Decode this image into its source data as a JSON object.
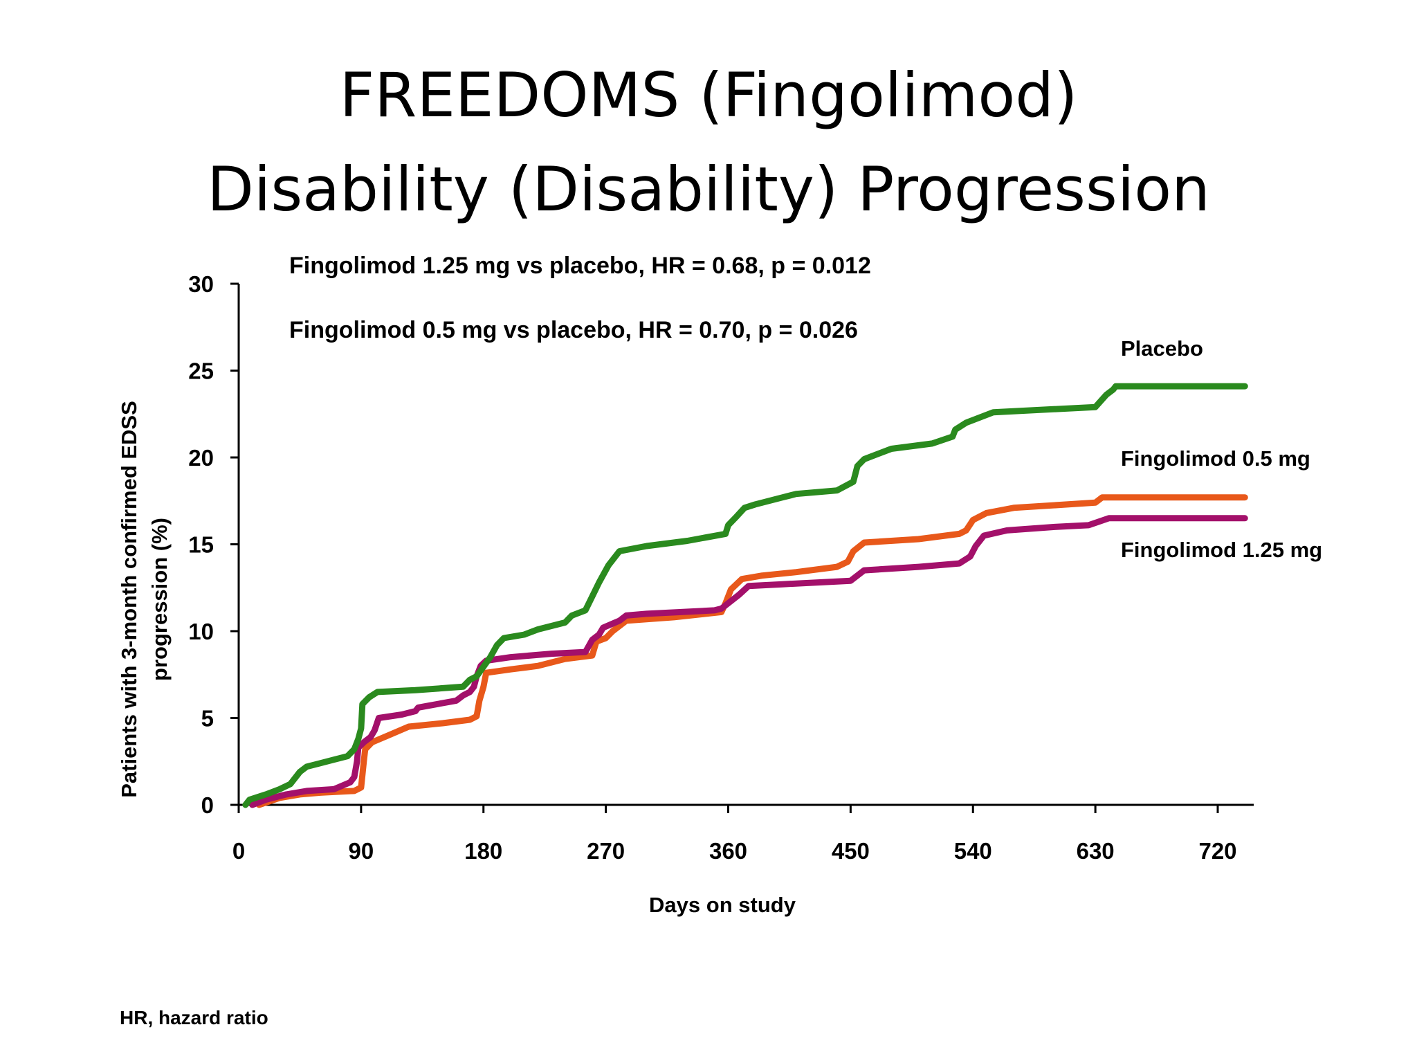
{
  "title": {
    "line1": "FREEDOMS (Fingolimod)",
    "line2": "Disability (Disability) Progression"
  },
  "footnote": "HR, hazard ratio",
  "colors": {
    "placebo": "#2a8a1e",
    "fingolimod_05": "#e8581a",
    "fingolimod_125": "#a3106a",
    "axis": "#000000"
  },
  "chart_data": {
    "type": "line",
    "title": "",
    "xlabel": "Days on study",
    "ylabel": "Patients with 3-month confirmed EDSS progression (%)",
    "ylabel_line1": "Patients with 3-month confirmed EDSS",
    "ylabel_line2": "progression (%)",
    "xlim": [
      0,
      740
    ],
    "ylim": [
      0,
      30
    ],
    "xticks": [
      "0",
      "90",
      "180",
      "270",
      "360",
      "450",
      "540",
      "630",
      "720"
    ],
    "xtick_values": [
      0,
      90,
      180,
      270,
      360,
      450,
      540,
      630,
      720
    ],
    "yticks": [
      "0",
      "5",
      "10",
      "15",
      "20",
      "25",
      "30"
    ],
    "ytick_values": [
      0,
      5,
      10,
      15,
      20,
      25,
      30
    ],
    "grid": false,
    "annotations": [
      "Fingolimod 1.25 mg vs placebo, HR = 0.68, p = 0.012",
      "Fingolimod 0.5 mg vs placebo, HR = 0.70, p = 0.026"
    ],
    "series": [
      {
        "name": "Placebo",
        "color_key": "placebo",
        "points": [
          [
            5,
            0
          ],
          [
            8,
            0.3
          ],
          [
            20,
            0.6
          ],
          [
            30,
            0.9
          ],
          [
            38,
            1.2
          ],
          [
            45,
            1.9
          ],
          [
            50,
            2.2
          ],
          [
            60,
            2.4
          ],
          [
            70,
            2.6
          ],
          [
            80,
            2.8
          ],
          [
            85,
            3.2
          ],
          [
            88,
            3.8
          ],
          [
            90,
            4.4
          ],
          [
            91,
            5.8
          ],
          [
            96,
            6.2
          ],
          [
            102,
            6.5
          ],
          [
            130,
            6.6
          ],
          [
            165,
            6.8
          ],
          [
            170,
            7.2
          ],
          [
            175,
            7.4
          ],
          [
            185,
            8.5
          ],
          [
            190,
            9.2
          ],
          [
            195,
            9.6
          ],
          [
            210,
            9.8
          ],
          [
            220,
            10.1
          ],
          [
            240,
            10.5
          ],
          [
            245,
            10.9
          ],
          [
            255,
            11.2
          ],
          [
            260,
            12.0
          ],
          [
            265,
            12.8
          ],
          [
            272,
            13.8
          ],
          [
            280,
            14.6
          ],
          [
            300,
            14.9
          ],
          [
            330,
            15.2
          ],
          [
            358,
            15.6
          ],
          [
            360,
            16.1
          ],
          [
            365,
            16.5
          ],
          [
            372,
            17.1
          ],
          [
            380,
            17.3
          ],
          [
            400,
            17.7
          ],
          [
            410,
            17.9
          ],
          [
            440,
            18.1
          ],
          [
            452,
            18.6
          ],
          [
            455,
            19.5
          ],
          [
            460,
            19.9
          ],
          [
            480,
            20.5
          ],
          [
            510,
            20.8
          ],
          [
            525,
            21.2
          ],
          [
            527,
            21.6
          ],
          [
            535,
            22.0
          ],
          [
            555,
            22.6
          ],
          [
            630,
            22.9
          ],
          [
            638,
            23.6
          ],
          [
            643,
            23.9
          ],
          [
            645,
            24.1
          ],
          [
            740,
            24.1
          ]
        ]
      },
      {
        "name": "Fingolimod 0.5 mg",
        "color_key": "fingolimod_05",
        "points": [
          [
            15,
            0
          ],
          [
            30,
            0.4
          ],
          [
            45,
            0.6
          ],
          [
            60,
            0.7
          ],
          [
            85,
            0.8
          ],
          [
            90,
            1.0
          ],
          [
            92,
            2.5
          ],
          [
            93,
            3.2
          ],
          [
            98,
            3.6
          ],
          [
            110,
            4.0
          ],
          [
            125,
            4.5
          ],
          [
            150,
            4.7
          ],
          [
            170,
            4.9
          ],
          [
            175,
            5.1
          ],
          [
            177,
            6.0
          ],
          [
            180,
            6.8
          ],
          [
            182,
            7.6
          ],
          [
            200,
            7.8
          ],
          [
            220,
            8.0
          ],
          [
            240,
            8.4
          ],
          [
            260,
            8.6
          ],
          [
            263,
            9.4
          ],
          [
            270,
            9.6
          ],
          [
            275,
            10.0
          ],
          [
            285,
            10.6
          ],
          [
            320,
            10.8
          ],
          [
            355,
            11.1
          ],
          [
            358,
            11.6
          ],
          [
            362,
            12.4
          ],
          [
            370,
            13.0
          ],
          [
            385,
            13.2
          ],
          [
            410,
            13.4
          ],
          [
            440,
            13.7
          ],
          [
            448,
            14.0
          ],
          [
            452,
            14.6
          ],
          [
            460,
            15.1
          ],
          [
            500,
            15.3
          ],
          [
            530,
            15.6
          ],
          [
            535,
            15.8
          ],
          [
            540,
            16.4
          ],
          [
            550,
            16.8
          ],
          [
            570,
            17.1
          ],
          [
            630,
            17.4
          ],
          [
            635,
            17.7
          ],
          [
            740,
            17.7
          ]
        ]
      },
      {
        "name": "Fingolimod 1.25 mg",
        "color_key": "fingolimod_125",
        "points": [
          [
            10,
            0
          ],
          [
            20,
            0.3
          ],
          [
            35,
            0.6
          ],
          [
            50,
            0.8
          ],
          [
            70,
            0.9
          ],
          [
            82,
            1.3
          ],
          [
            85,
            1.6
          ],
          [
            87,
            2.5
          ],
          [
            88,
            3.3
          ],
          [
            92,
            3.6
          ],
          [
            97,
            3.9
          ],
          [
            100,
            4.3
          ],
          [
            103,
            5.0
          ],
          [
            120,
            5.2
          ],
          [
            130,
            5.4
          ],
          [
            132,
            5.6
          ],
          [
            160,
            6.0
          ],
          [
            165,
            6.3
          ],
          [
            170,
            6.5
          ],
          [
            173,
            6.8
          ],
          [
            175,
            7.4
          ],
          [
            178,
            8.0
          ],
          [
            182,
            8.3
          ],
          [
            200,
            8.5
          ],
          [
            230,
            8.7
          ],
          [
            255,
            8.8
          ],
          [
            260,
            9.5
          ],
          [
            265,
            9.8
          ],
          [
            268,
            10.2
          ],
          [
            280,
            10.6
          ],
          [
            285,
            10.9
          ],
          [
            300,
            11.0
          ],
          [
            350,
            11.2
          ],
          [
            355,
            11.3
          ],
          [
            368,
            12.1
          ],
          [
            375,
            12.6
          ],
          [
            400,
            12.7
          ],
          [
            450,
            12.9
          ],
          [
            460,
            13.5
          ],
          [
            500,
            13.7
          ],
          [
            530,
            13.9
          ],
          [
            538,
            14.3
          ],
          [
            542,
            14.9
          ],
          [
            548,
            15.5
          ],
          [
            565,
            15.8
          ],
          [
            600,
            16.0
          ],
          [
            625,
            16.1
          ],
          [
            640,
            16.5
          ],
          [
            740,
            16.5
          ]
        ]
      }
    ]
  }
}
